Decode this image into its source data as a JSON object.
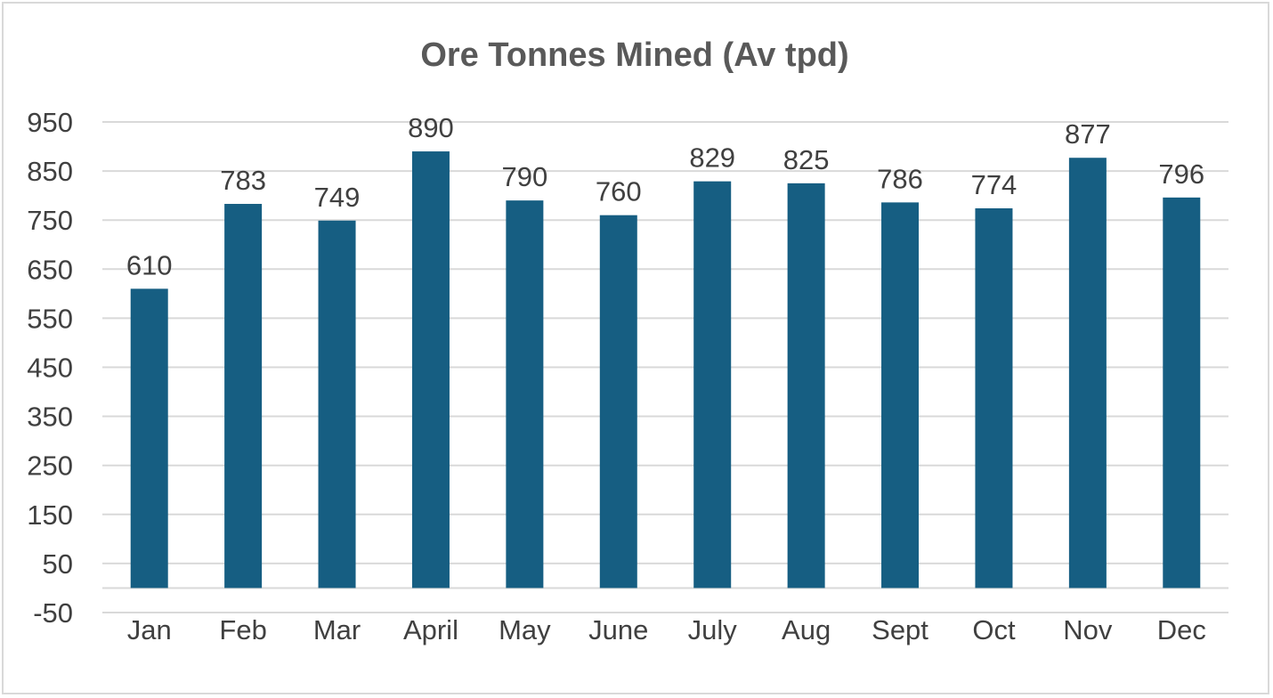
{
  "chart_data": {
    "type": "bar",
    "title": "Ore Tonnes Mined (Av tpd)",
    "xlabel": "",
    "ylabel": "",
    "categories": [
      "Jan",
      "Feb",
      "Mar",
      "April",
      "May",
      "June",
      "July",
      "Aug",
      "Sept",
      "Oct",
      "Nov",
      "Dec"
    ],
    "values": [
      610,
      783,
      749,
      890,
      790,
      760,
      829,
      825,
      786,
      774,
      877,
      796
    ],
    "ylim": [
      -50,
      950
    ],
    "yticks": [
      -50,
      50,
      150,
      250,
      350,
      450,
      550,
      650,
      750,
      850,
      950
    ],
    "grid": true,
    "data_labels": true,
    "legend": "none",
    "bar_color": "#165e82"
  }
}
